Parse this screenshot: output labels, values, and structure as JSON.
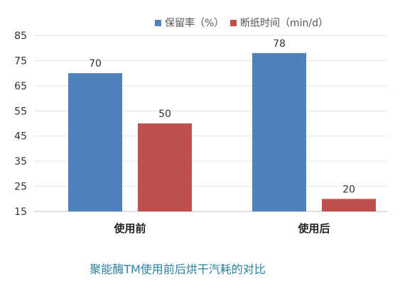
{
  "chart_data": {
    "type": "bar",
    "categories": [
      "使用前",
      "使用后"
    ],
    "series": [
      {
        "name": "保留率（%）",
        "values": [
          70,
          78
        ],
        "color": "#4f81bd"
      },
      {
        "name": "断纸时间（min/d）",
        "values": [
          50,
          20
        ],
        "color": "#c0504d"
      }
    ],
    "yticks": [
      15,
      25,
      35,
      45,
      55,
      65,
      75,
      85
    ],
    "ylim": [
      15,
      85
    ],
    "grid": true,
    "legend_position": "top-right"
  },
  "caption": "聚能酶TM使用前后烘干汽耗的对比"
}
